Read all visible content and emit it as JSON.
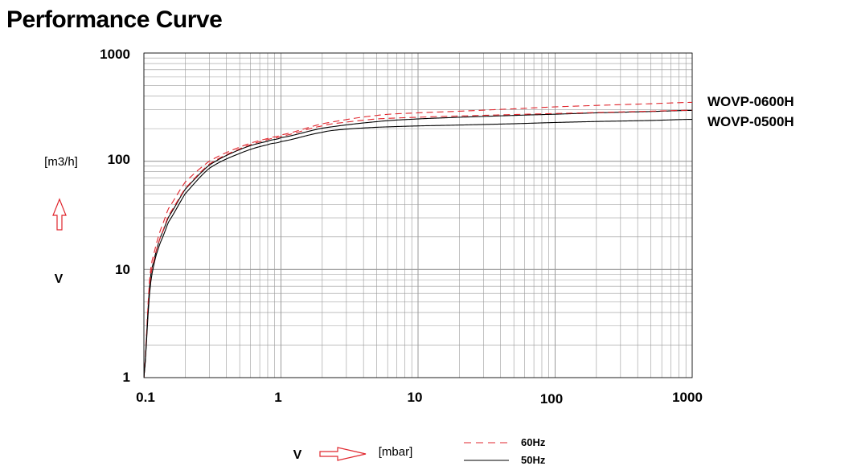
{
  "page": {
    "title": "Performance Curve"
  },
  "chart_data": {
    "type": "line",
    "x_scale": "log",
    "y_scale": "log",
    "xlim": [
      0.1,
      1000
    ],
    "ylim": [
      1,
      1000
    ],
    "x_ticks": [
      0.1,
      1,
      10,
      100,
      1000
    ],
    "x_tick_labels": [
      "0.1",
      "1",
      "10",
      "100",
      "1000"
    ],
    "y_ticks": [
      1,
      10,
      100,
      1000
    ],
    "y_tick_labels": [
      "1",
      "10",
      "100",
      "1000"
    ],
    "xlabel": "[mbar]",
    "ylabel": "[m3/h]",
    "x_symbol": "V",
    "y_symbol": "V",
    "grid": true,
    "colors": {
      "hz60": "#e0262d",
      "hz50": "#000000",
      "grid": "#999999",
      "arrow": "#e0262d"
    },
    "series": [
      {
        "name": "WOVP-0600H",
        "frequency": "60Hz",
        "style": "dashed",
        "x": [
          0.1,
          0.11,
          0.12,
          0.13,
          0.15,
          0.2,
          0.3,
          0.5,
          0.8,
          1,
          2,
          5,
          10,
          20,
          50,
          100,
          200,
          500,
          1000
        ],
        "y": [
          1,
          8,
          15,
          22,
          36,
          64,
          100,
          135,
          162,
          175,
          222,
          265,
          280,
          290,
          305,
          318,
          328,
          340,
          350
        ]
      },
      {
        "name": "WOVP-0600H",
        "frequency": "50Hz",
        "style": "solid",
        "x": [
          0.1,
          0.11,
          0.12,
          0.13,
          0.15,
          0.2,
          0.3,
          0.5,
          0.8,
          1,
          2,
          5,
          10,
          20,
          50,
          100,
          200,
          500,
          1000
        ],
        "y": [
          1,
          7,
          13,
          19,
          30,
          55,
          92,
          128,
          153,
          165,
          202,
          232,
          246,
          255,
          265,
          272,
          280,
          288,
          295
        ]
      },
      {
        "name": "WOVP-0500H",
        "frequency": "60Hz",
        "style": "dashed",
        "x": [
          0.1,
          0.11,
          0.12,
          0.13,
          0.15,
          0.2,
          0.3,
          0.5,
          0.8,
          1,
          2,
          3,
          5,
          10,
          20,
          50,
          100,
          200,
          500,
          1000
        ],
        "y": [
          1,
          7,
          13,
          19,
          31,
          56,
          94,
          130,
          158,
          170,
          212,
          230,
          246,
          255,
          262,
          270,
          276,
          282,
          290,
          296
        ]
      },
      {
        "name": "WOVP-0500H",
        "frequency": "50Hz",
        "style": "solid",
        "x": [
          0.1,
          0.11,
          0.12,
          0.13,
          0.15,
          0.2,
          0.3,
          0.5,
          0.8,
          1,
          2,
          3,
          5,
          10,
          20,
          50,
          100,
          200,
          500,
          1000
        ],
        "y": [
          1,
          6,
          12,
          17,
          27,
          50,
          86,
          118,
          142,
          152,
          185,
          198,
          206,
          212,
          216,
          222,
          228,
          233,
          238,
          244
        ]
      }
    ],
    "annotations": [
      "WOVP-0600H",
      "WOVP-0500H"
    ],
    "legend": [
      {
        "label": "60Hz",
        "style": "dashed"
      },
      {
        "label": "50Hz",
        "style": "solid"
      }
    ],
    "legend_placement": "bottom-right"
  }
}
